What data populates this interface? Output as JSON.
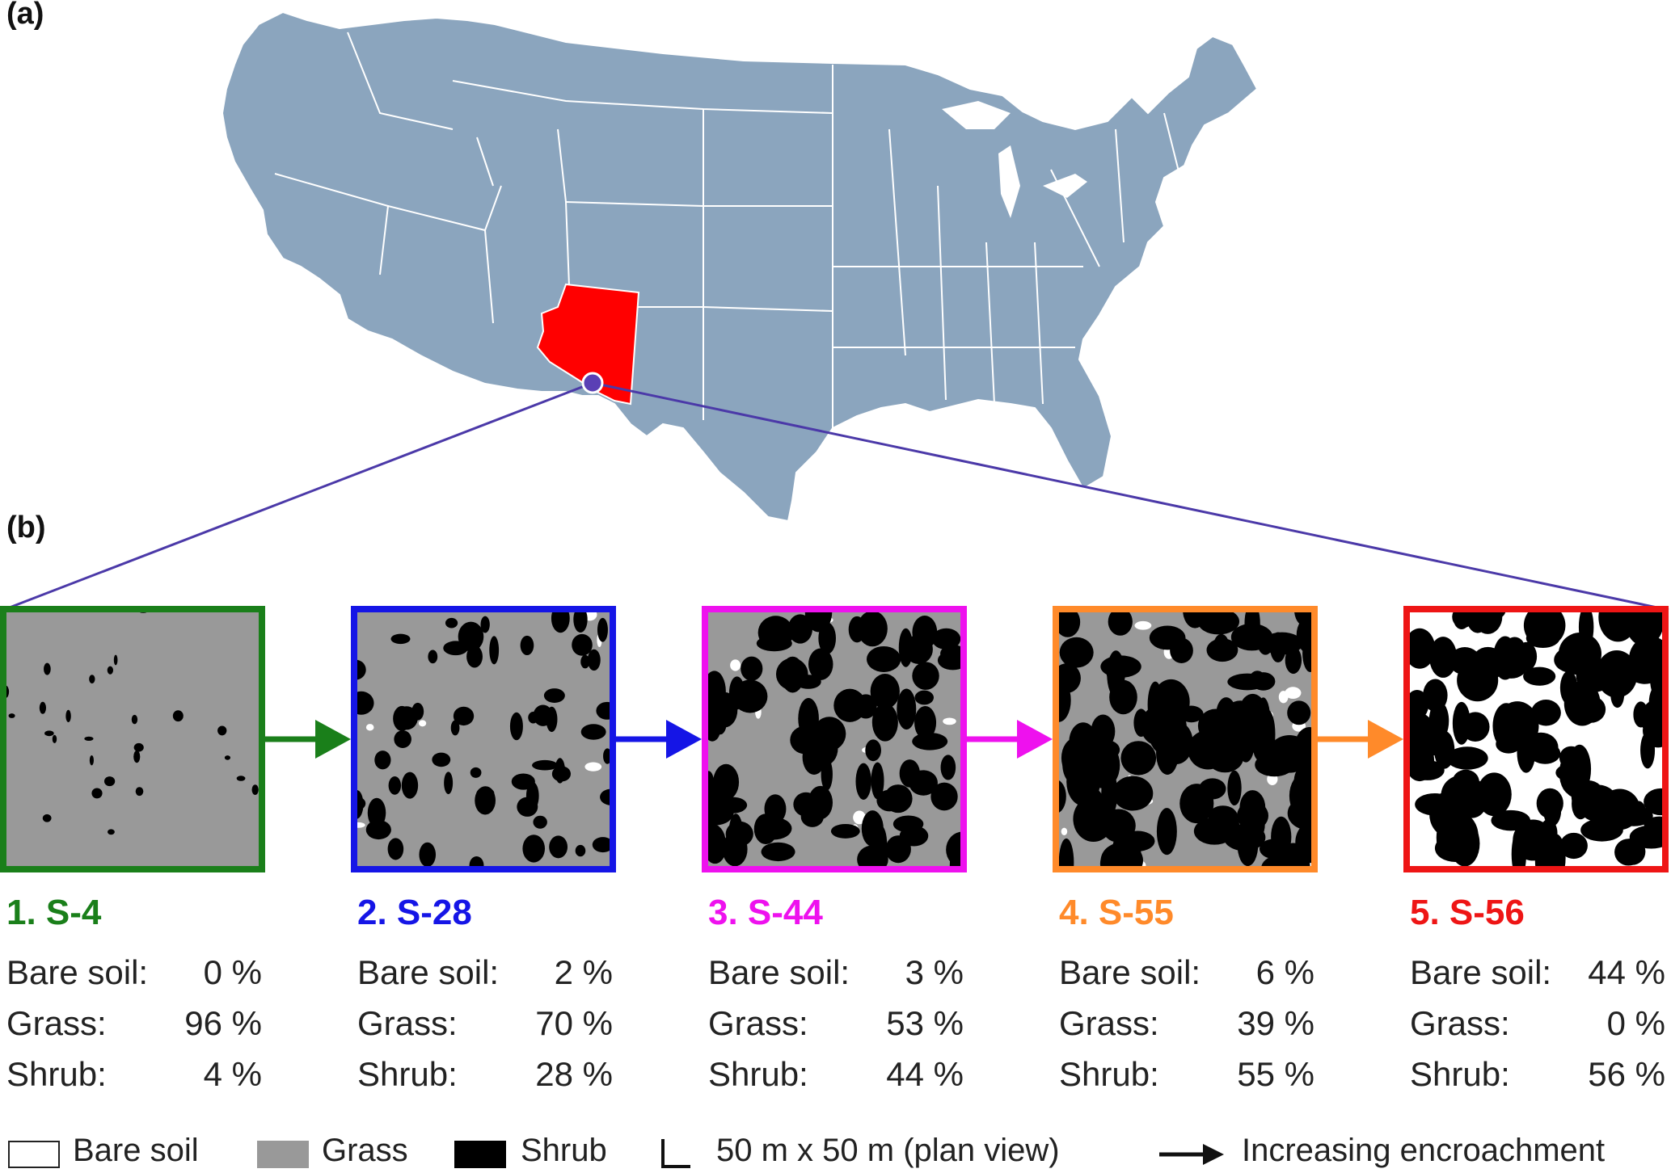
{
  "panels": {
    "a": "(a)",
    "b": "(b)"
  },
  "colors": {
    "us_fill": "#8ba5be",
    "state_border": "#ffffff",
    "arizona": "#ff0000",
    "site_marker": "#5a3fb5",
    "zoom_line": "#4b39a8",
    "bare_soil": "#ffffff",
    "grass": "#999999",
    "shrub": "#000000"
  },
  "map": {
    "highlighted_state": "Arizona"
  },
  "sites": [
    {
      "title": "1. S-4",
      "color": "#1a7f1a",
      "bare_soil": "0 %",
      "grass": "96 %",
      "shrub": "4 %"
    },
    {
      "title": "2. S-28",
      "color": "#1515e6",
      "bare_soil": "2 %",
      "grass": "70 %",
      "shrub": "28 %"
    },
    {
      "title": "3. S-44",
      "color": "#ee11ee",
      "bare_soil": "3 %",
      "grass": "53 %",
      "shrub": "44 %"
    },
    {
      "title": "4. S-55",
      "color": "#ff8a2a",
      "bare_soil": "6 %",
      "grass": "39 %",
      "shrub": "55 %"
    },
    {
      "title": "5. S-56",
      "color": "#ee1515",
      "bare_soil": "44 %",
      "grass": "0 %",
      "shrub": "56 %"
    }
  ],
  "row_labels": {
    "bare_soil": "Bare soil:",
    "grass": "Grass:",
    "shrub": "Shrub:"
  },
  "legend": {
    "bare_soil": "Bare soil",
    "grass": "Grass",
    "shrub": "Shrub",
    "scale": "50 m x 50 m (plan view)",
    "arrow": "Increasing encroachment"
  }
}
